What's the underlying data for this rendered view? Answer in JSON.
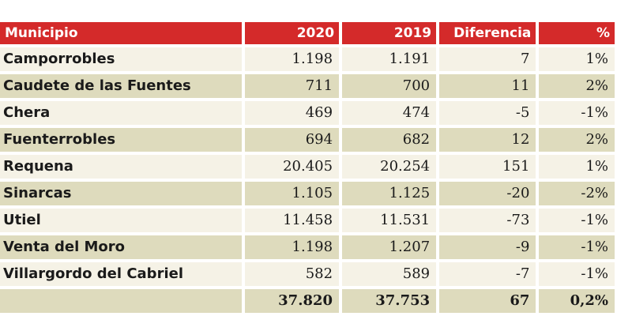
{
  "table": {
    "headers": {
      "municipio": "Municipio",
      "y2020": "2020",
      "y2019": "2019",
      "diferencia": "Diferencia",
      "pct": "%"
    },
    "rows": [
      {
        "municipio": "Camporrobles",
        "y2020": "1.198",
        "y2019": "1.191",
        "diferencia": "7",
        "pct": "1%"
      },
      {
        "municipio": "Caudete de las Fuentes",
        "y2020": "711",
        "y2019": "700",
        "diferencia": "11",
        "pct": "2%"
      },
      {
        "municipio": "Chera",
        "y2020": "469",
        "y2019": "474",
        "diferencia": "-5",
        "pct": "-1%"
      },
      {
        "municipio": "Fuenterrobles",
        "y2020": "694",
        "y2019": "682",
        "diferencia": "12",
        "pct": "2%"
      },
      {
        "municipio": "Requena",
        "y2020": "20.405",
        "y2019": "20.254",
        "diferencia": "151",
        "pct": "1%"
      },
      {
        "municipio": "Sinarcas",
        "y2020": "1.105",
        "y2019": "1.125",
        "diferencia": "-20",
        "pct": "-2%"
      },
      {
        "municipio": "Utiel",
        "y2020": "11.458",
        "y2019": "11.531",
        "diferencia": "-73",
        "pct": "-1%"
      },
      {
        "municipio": "Venta del Moro",
        "y2020": "1.198",
        "y2019": "1.207",
        "diferencia": "-9",
        "pct": "-1%"
      },
      {
        "municipio": "Villargordo del Cabriel",
        "y2020": "582",
        "y2019": "589",
        "diferencia": "-7",
        "pct": "-1%"
      }
    ],
    "total": {
      "municipio": "",
      "y2020": "37.820",
      "y2019": "37.753",
      "diferencia": "67",
      "pct": "0,2%"
    }
  }
}
